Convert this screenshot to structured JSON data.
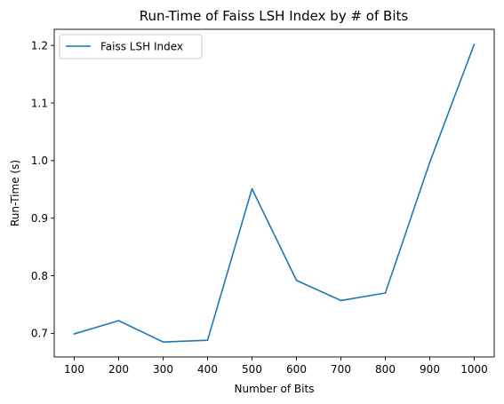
{
  "chart_data": {
    "type": "line",
    "title": "Run-Time of Faiss LSH Index by # of Bits",
    "xlabel": "Number of Bits",
    "ylabel": "Run-Time (s)",
    "x": [
      100,
      200,
      300,
      400,
      500,
      600,
      700,
      800,
      900,
      1000
    ],
    "xticks": [
      "100",
      "200",
      "300",
      "400",
      "500",
      "600",
      "700",
      "800",
      "900",
      "1000"
    ],
    "yticks": [
      "0.7",
      "0.8",
      "0.9",
      "1.0",
      "1.1",
      "1.2"
    ],
    "xlim": [
      55,
      1045
    ],
    "ylim": [
      0.659,
      1.228
    ],
    "series": [
      {
        "name": "Faiss LSH Index",
        "color": "#1f77b4",
        "values": [
          0.699,
          0.722,
          0.685,
          0.688,
          0.951,
          0.792,
          0.757,
          0.77,
          0.997,
          1.202
        ]
      }
    ],
    "legend": "top-left",
    "grid": false
  }
}
